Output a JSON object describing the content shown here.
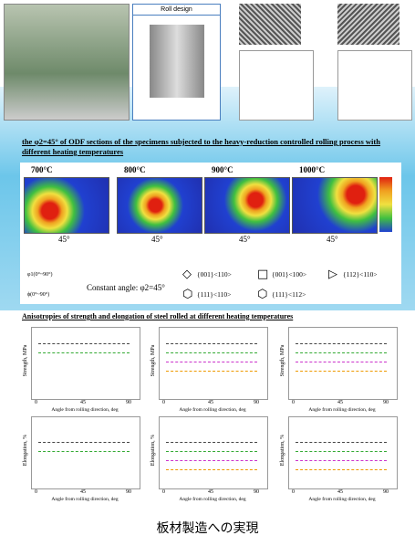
{
  "top": {
    "roll_design": "Roll design"
  },
  "odf": {
    "title": "the φ2=45° of ODF sections of the specimens subjected to the heavy-reduction controlled rolling process with different heating temperatures",
    "temperatures": [
      "700°C",
      "800°C",
      "900°C",
      "1000°C"
    ],
    "angle_label": "45°",
    "axis_phi1": "φ1(0°~90°)",
    "axis_phi": "ϕ(0°~90°)",
    "constant_angle": "Constant angle: φ2=45°",
    "legend": [
      "{001}<110>",
      "{001}<100>",
      "{112}<110>",
      "{111}<110>",
      "{111}<112>"
    ]
  },
  "anisotropy": {
    "title": "Anisotropies of strength and elongation of steel rolled at different heating temperatures",
    "strength_label": "Strength, MPa",
    "elongation_label": "Elongation, %",
    "xlabel": "Angle from rolling direction, deg",
    "xticks": [
      "0",
      "45",
      "90"
    ]
  },
  "caption": "板材製造への実現"
}
